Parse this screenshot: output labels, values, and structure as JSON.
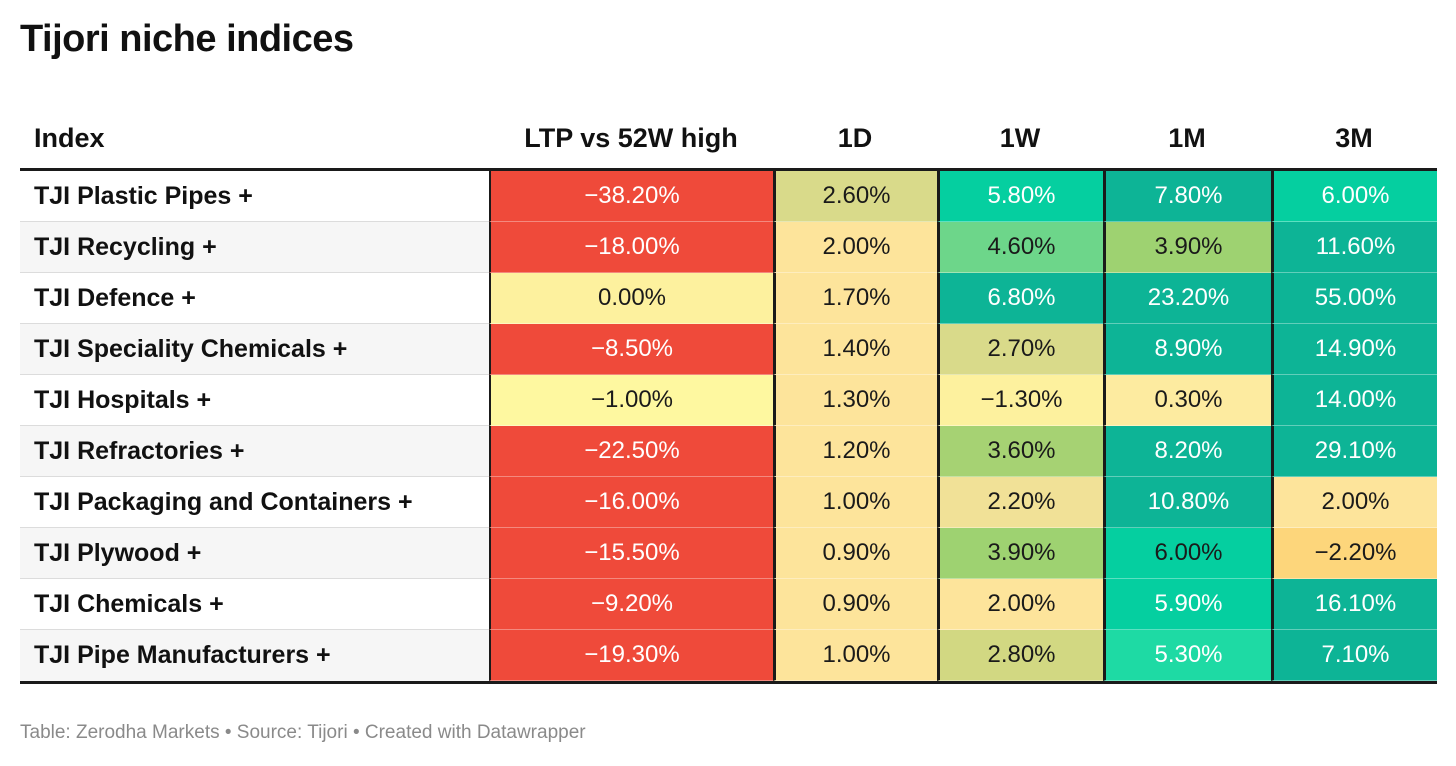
{
  "title": "Tijori niche indices",
  "footer": "Table: Zerodha Markets • Source: Tijori • Created with Datawrapper",
  "columns": [
    "Index",
    "LTP vs 52W high",
    "1D",
    "1W",
    "1M",
    "3M"
  ],
  "rows": [
    {
      "name": "TJI Plastic Pipes +",
      "cells": [
        {
          "text": "−38.20%",
          "bg": "#ef4a3a",
          "fg": "dark"
        },
        {
          "text": "2.60%",
          "bg": "#d9da8a",
          "fg": "light"
        },
        {
          "text": "5.80%",
          "bg": "#05cfa0",
          "fg": "dark"
        },
        {
          "text": "7.80%",
          "bg": "#0db496",
          "fg": "dark"
        },
        {
          "text": "6.00%",
          "bg": "#05cfa0",
          "fg": "dark"
        }
      ]
    },
    {
      "name": "TJI Recycling +",
      "cells": [
        {
          "text": "−18.00%",
          "bg": "#ef4a3a",
          "fg": "dark"
        },
        {
          "text": "2.00%",
          "bg": "#fde49b",
          "fg": "light"
        },
        {
          "text": "4.60%",
          "bg": "#6dd68a",
          "fg": "light"
        },
        {
          "text": "3.90%",
          "bg": "#9ed271",
          "fg": "light"
        },
        {
          "text": "11.60%",
          "bg": "#0db496",
          "fg": "dark"
        }
      ]
    },
    {
      "name": "TJI Defence +",
      "cells": [
        {
          "text": "0.00%",
          "bg": "#fdf19e",
          "fg": "light"
        },
        {
          "text": "1.70%",
          "bg": "#fde49b",
          "fg": "light"
        },
        {
          "text": "6.80%",
          "bg": "#0db496",
          "fg": "dark"
        },
        {
          "text": "23.20%",
          "bg": "#0db496",
          "fg": "dark"
        },
        {
          "text": "55.00%",
          "bg": "#0db496",
          "fg": "dark"
        }
      ]
    },
    {
      "name": "TJI Speciality Chemicals +",
      "cells": [
        {
          "text": "−8.50%",
          "bg": "#ef4a3a",
          "fg": "dark"
        },
        {
          "text": "1.40%",
          "bg": "#fde49b",
          "fg": "light"
        },
        {
          "text": "2.70%",
          "bg": "#d9da8a",
          "fg": "light"
        },
        {
          "text": "8.90%",
          "bg": "#0db496",
          "fg": "dark"
        },
        {
          "text": "14.90%",
          "bg": "#0db496",
          "fg": "dark"
        }
      ]
    },
    {
      "name": "TJI Hospitals +",
      "cells": [
        {
          "text": "−1.00%",
          "bg": "#fef8a0",
          "fg": "light"
        },
        {
          "text": "1.30%",
          "bg": "#fde49b",
          "fg": "light"
        },
        {
          "text": "−1.30%",
          "bg": "#fdf19e",
          "fg": "light"
        },
        {
          "text": "0.30%",
          "bg": "#fdeba0",
          "fg": "light"
        },
        {
          "text": "14.00%",
          "bg": "#0db496",
          "fg": "dark"
        }
      ]
    },
    {
      "name": "TJI Refractories +",
      "cells": [
        {
          "text": "−22.50%",
          "bg": "#ef4a3a",
          "fg": "dark"
        },
        {
          "text": "1.20%",
          "bg": "#fde49b",
          "fg": "light"
        },
        {
          "text": "3.60%",
          "bg": "#a6d273",
          "fg": "light"
        },
        {
          "text": "8.20%",
          "bg": "#0db496",
          "fg": "dark"
        },
        {
          "text": "29.10%",
          "bg": "#0db496",
          "fg": "dark"
        }
      ]
    },
    {
      "name": "TJI Packaging and Containers +",
      "cells": [
        {
          "text": "−16.00%",
          "bg": "#ef4a3a",
          "fg": "dark"
        },
        {
          "text": "1.00%",
          "bg": "#fde49b",
          "fg": "light"
        },
        {
          "text": "2.20%",
          "bg": "#f1e197",
          "fg": "light"
        },
        {
          "text": "10.80%",
          "bg": "#0db496",
          "fg": "dark"
        },
        {
          "text": "2.00%",
          "bg": "#fde49b",
          "fg": "light"
        }
      ]
    },
    {
      "name": "TJI Plywood +",
      "cells": [
        {
          "text": "−15.50%",
          "bg": "#ef4a3a",
          "fg": "dark"
        },
        {
          "text": "0.90%",
          "bg": "#fde49b",
          "fg": "light"
        },
        {
          "text": "3.90%",
          "bg": "#9ed271",
          "fg": "light"
        },
        {
          "text": "6.00%",
          "bg": "#05cfa0",
          "fg": "light"
        },
        {
          "text": "−2.20%",
          "bg": "#fdd67b",
          "fg": "light"
        }
      ]
    },
    {
      "name": "TJI Chemicals +",
      "cells": [
        {
          "text": "−9.20%",
          "bg": "#ef4a3a",
          "fg": "dark"
        },
        {
          "text": "0.90%",
          "bg": "#fde49b",
          "fg": "light"
        },
        {
          "text": "2.00%",
          "bg": "#fde49b",
          "fg": "light"
        },
        {
          "text": "5.90%",
          "bg": "#05cfa0",
          "fg": "dark"
        },
        {
          "text": "16.10%",
          "bg": "#0db496",
          "fg": "dark"
        }
      ]
    },
    {
      "name": "TJI Pipe Manufacturers +",
      "cells": [
        {
          "text": "−19.30%",
          "bg": "#ef4a3a",
          "fg": "dark"
        },
        {
          "text": "1.00%",
          "bg": "#fde49b",
          "fg": "light"
        },
        {
          "text": "2.80%",
          "bg": "#d2d882",
          "fg": "light"
        },
        {
          "text": "5.30%",
          "bg": "#1edaa4",
          "fg": "dark"
        },
        {
          "text": "7.10%",
          "bg": "#0db496",
          "fg": "dark"
        }
      ]
    }
  ],
  "chart_data": {
    "type": "table",
    "title": "Tijori niche indices",
    "columns": [
      "Index",
      "LTP vs 52W high",
      "1D",
      "1W",
      "1M",
      "3M"
    ],
    "rows": [
      [
        "TJI Plastic Pipes +",
        -38.2,
        2.6,
        5.8,
        7.8,
        6.0
      ],
      [
        "TJI Recycling +",
        -18.0,
        2.0,
        4.6,
        3.9,
        11.6
      ],
      [
        "TJI Defence +",
        0.0,
        1.7,
        6.8,
        23.2,
        55.0
      ],
      [
        "TJI Speciality Chemicals +",
        -8.5,
        1.4,
        2.7,
        8.9,
        14.9
      ],
      [
        "TJI Hospitals +",
        -1.0,
        1.3,
        -1.3,
        0.3,
        14.0
      ],
      [
        "TJI Refractories +",
        -22.5,
        1.2,
        3.6,
        8.2,
        29.1
      ],
      [
        "TJI Packaging and Containers +",
        -16.0,
        1.0,
        2.2,
        10.8,
        2.0
      ],
      [
        "TJI Plywood +",
        -15.5,
        0.9,
        3.9,
        6.0,
        -2.2
      ],
      [
        "TJI Chemicals +",
        -9.2,
        0.9,
        2.0,
        5.9,
        16.1
      ],
      [
        "TJI Pipe Manufacturers +",
        -19.3,
        1.0,
        2.8,
        5.3,
        7.1
      ]
    ],
    "unit": "%"
  }
}
